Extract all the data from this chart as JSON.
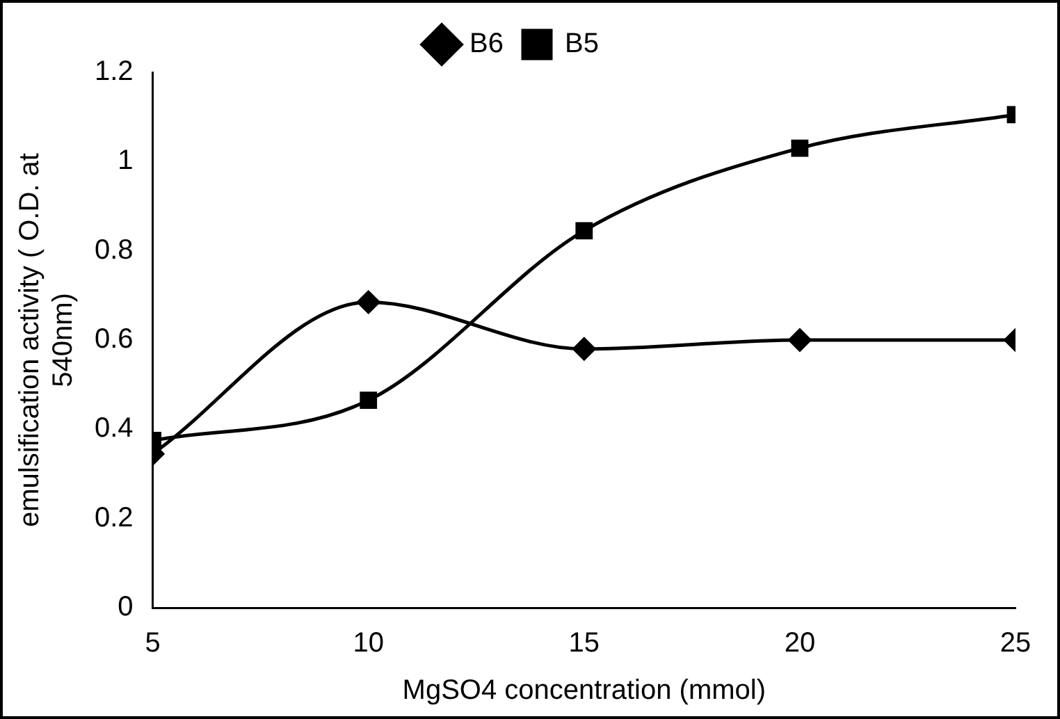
{
  "chart_data": {
    "type": "line",
    "xlabel": "MgSO4 concentration (mmol)",
    "ylabel": "emulsification activity ( O.D. at 540nm)",
    "x": [
      5,
      10,
      15,
      20,
      25
    ],
    "series": [
      {
        "name": "B6",
        "color": "#000000",
        "marker": "diamond",
        "values": [
          0.345,
          0.685,
          0.58,
          0.6,
          0.6
        ]
      },
      {
        "name": "B5",
        "color": "#000000",
        "marker": "square",
        "values": [
          0.375,
          0.465,
          0.845,
          1.03,
          1.105
        ]
      }
    ],
    "xlim": [
      5,
      25
    ],
    "xticks": [
      5,
      10,
      15,
      20,
      25
    ],
    "ylim": [
      0,
      1.2
    ],
    "yticks": [
      0,
      0.2,
      0.4,
      0.6,
      0.8,
      1,
      1.2
    ],
    "grid": false,
    "legend": "top",
    "line_style": "solid"
  }
}
